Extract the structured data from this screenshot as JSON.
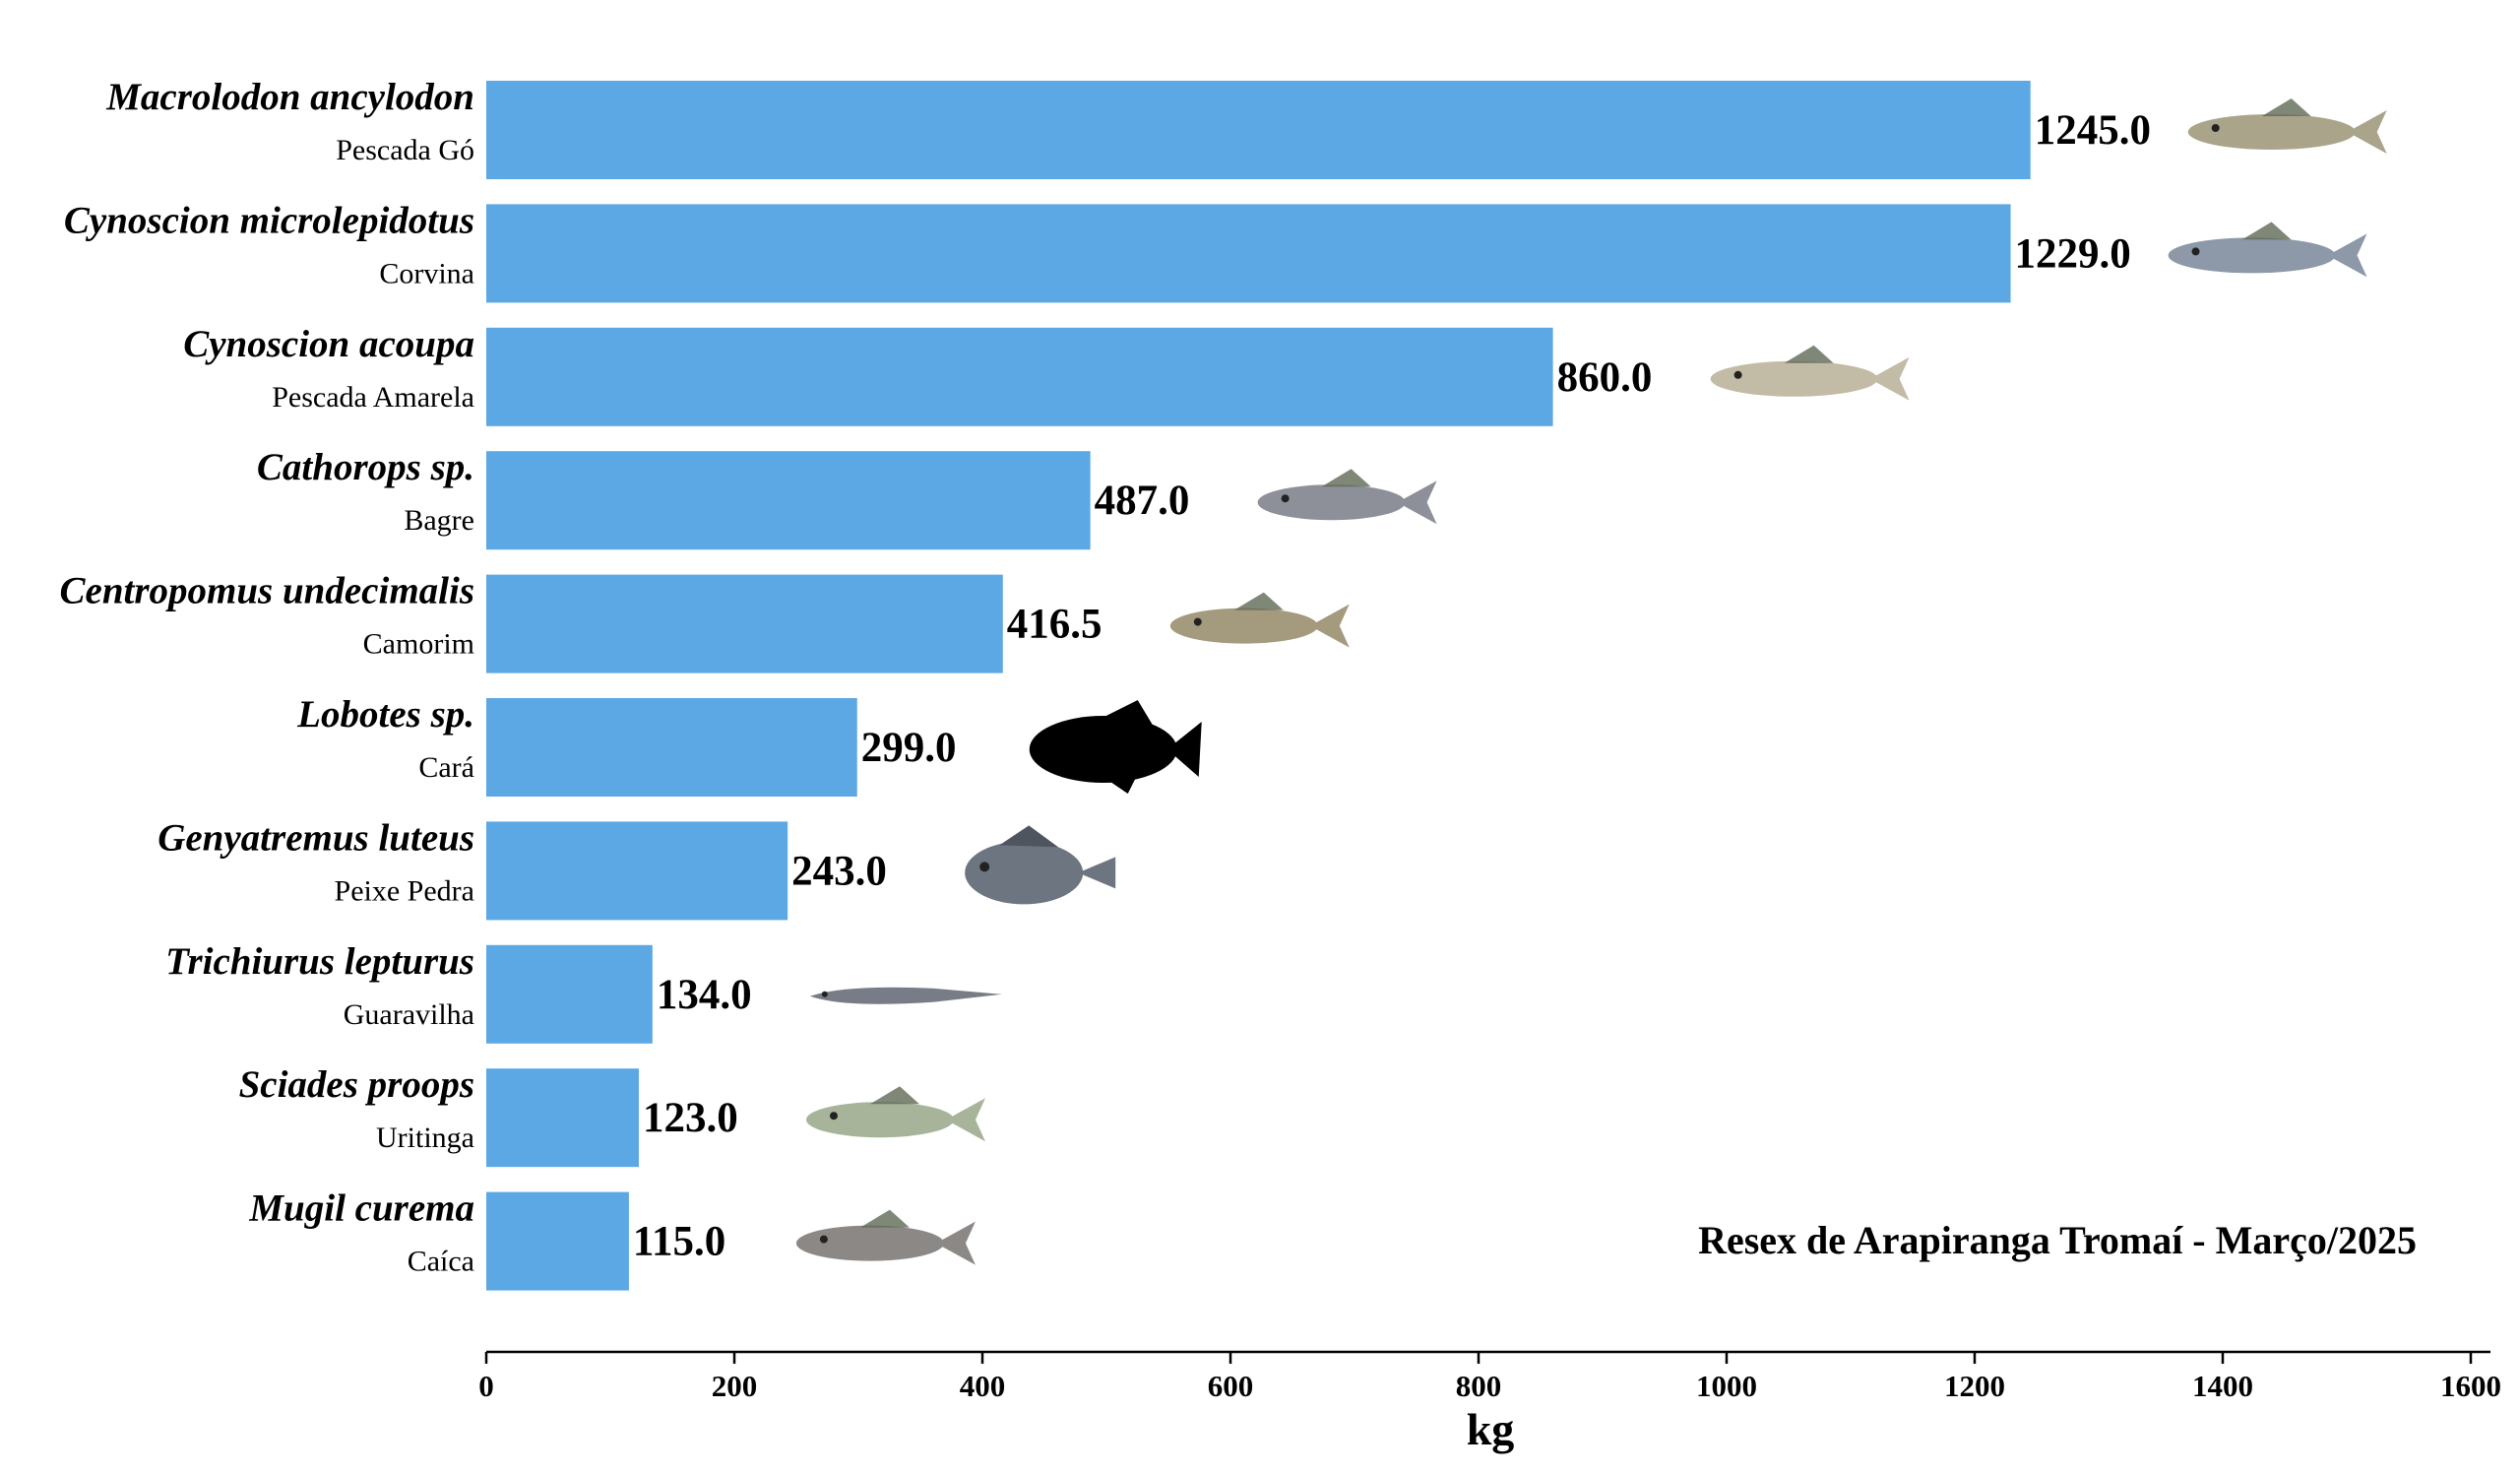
{
  "chart_data": {
    "type": "bar",
    "orientation": "horizontal",
    "categories": [
      "Macrolodon ancylodon",
      "Cynoscion microlepidotus",
      "Cynoscion acoupa",
      "Cathorops sp.",
      "Centropomus undecimalis",
      "Lobotes sp.",
      "Genyatremus luteus",
      "Trichiurus lepturus",
      "Sciades proops",
      "Mugil curema"
    ],
    "common_names": [
      "Pescada Gó",
      "Corvina",
      "Pescada Amarela",
      "Bagre",
      "Camorim",
      "Cará",
      "Peixe Pedra",
      "Guaravilha",
      "Uritinga",
      "Caíca"
    ],
    "values": [
      1245.0,
      1229.0,
      860.0,
      487.0,
      416.5,
      299.0,
      243.0,
      134.0,
      123.0,
      115.0
    ],
    "value_labels": [
      "1245.0",
      "1229.0",
      "860.0",
      "487.0",
      "416.5",
      "299.0",
      "243.0",
      "134.0",
      "123.0",
      "115.0"
    ],
    "fish_icons": [
      "pescada-go-fish-icon",
      "corvina-fish-icon",
      "pescada-amarela-fish-icon",
      "bagre-fish-icon",
      "camorim-fish-icon",
      "cara-fish-silhouette-icon",
      "peixe-pedra-fish-icon",
      "guaravilha-fish-icon",
      "uritinga-fish-icon",
      "caica-fish-icon"
    ],
    "fish_colors": [
      "#a9a48a",
      "#8d98a8",
      "#c2bba6",
      "#8d9098",
      "#a49a7e",
      "#000000",
      "#6d7580",
      "#787c86",
      "#a7b49a",
      "#8b8886"
    ],
    "xlabel": "kg",
    "ylabel": "",
    "xlim": [
      0,
      1600
    ],
    "xticks": [
      0,
      200,
      400,
      600,
      800,
      1000,
      1200,
      1400,
      1600
    ],
    "grid": false,
    "bar_color": "#5ca8e4",
    "annotation": "Resex de Arapiranga Tromaí - Março/2025"
  }
}
